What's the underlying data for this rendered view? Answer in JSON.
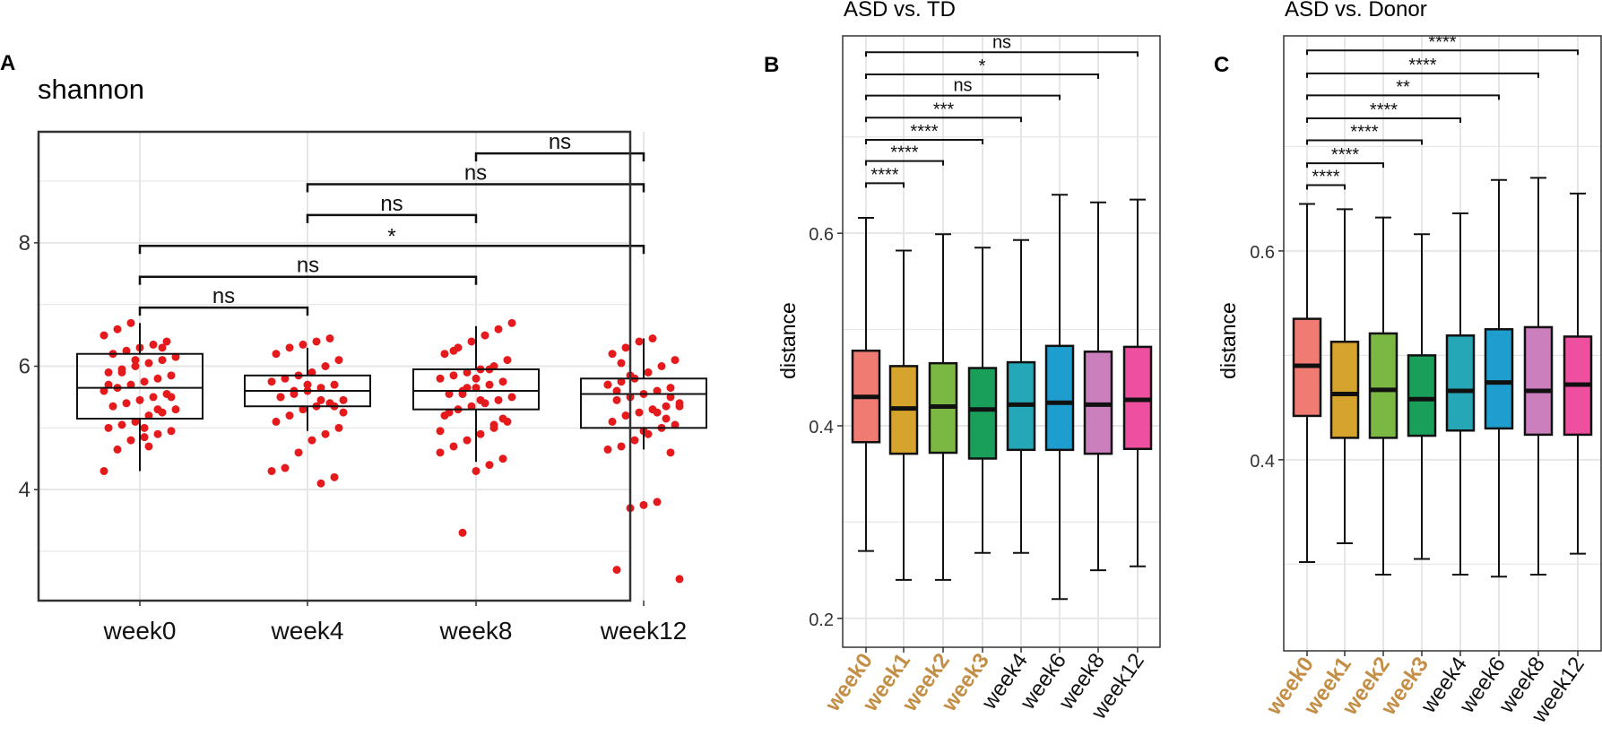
{
  "colors": {
    "grid": "#e6e6e6",
    "frame": "#333333",
    "points": "#e41a1c",
    "bold_tick": "#c38e45"
  },
  "chart_data": [
    {
      "panel_label": "A",
      "type": "box",
      "title": "shannon",
      "xlabel": "",
      "ylabel": "",
      "ylim": [
        2.2,
        9.8
      ],
      "yticks": [
        4,
        6,
        8
      ],
      "grid": true,
      "categories": [
        "week0",
        "week4",
        "week8",
        "week12"
      ],
      "boxes": [
        {
          "q1": 5.15,
          "median": 5.65,
          "q3": 6.2,
          "whisker_low": 4.3,
          "whisker_high": 6.7
        },
        {
          "q1": 5.35,
          "median": 5.6,
          "q3": 5.85,
          "whisker_low": 4.95,
          "whisker_high": 6.3
        },
        {
          "q1": 5.3,
          "median": 5.6,
          "q3": 5.95,
          "whisker_low": 4.45,
          "whisker_high": 6.65
        },
        {
          "q1": 5.0,
          "median": 5.55,
          "q3": 5.8,
          "whisker_low": 4.65,
          "whisker_high": 6.45
        }
      ],
      "points": [
        [
          4.3,
          4.65,
          4.8,
          4.85,
          4.9,
          4.95,
          5.0,
          5.05,
          5.1,
          5.2,
          5.25,
          5.3,
          5.35,
          5.4,
          5.45,
          5.5,
          5.55,
          5.6,
          5.65,
          5.7,
          5.75,
          5.8,
          5.85,
          5.9,
          5.95,
          6.0,
          6.05,
          6.1,
          6.15,
          6.2,
          6.25,
          6.3,
          6.35,
          6.4,
          6.5,
          6.6,
          6.7,
          5.0,
          5.3,
          5.5,
          5.7,
          5.9,
          6.1,
          4.7,
          6.3
        ],
        [
          4.1,
          4.2,
          4.3,
          4.35,
          4.6,
          4.8,
          4.9,
          5.0,
          5.1,
          5.2,
          5.3,
          5.35,
          5.4,
          5.45,
          5.5,
          5.55,
          5.6,
          5.65,
          5.7,
          5.75,
          5.8,
          5.85,
          5.9,
          6.0,
          6.1,
          6.2,
          6.3,
          6.35,
          6.4,
          6.45,
          5.25,
          5.5,
          5.6,
          5.7,
          5.45,
          5.35
        ],
        [
          3.3,
          4.3,
          4.4,
          4.5,
          4.6,
          4.7,
          4.8,
          4.9,
          5.0,
          5.1,
          5.2,
          5.3,
          5.35,
          5.4,
          5.45,
          5.5,
          5.55,
          5.6,
          5.65,
          5.7,
          5.75,
          5.8,
          5.85,
          5.9,
          5.95,
          6.0,
          6.1,
          6.2,
          6.3,
          6.4,
          6.5,
          6.6,
          6.7,
          5.25,
          5.55,
          5.8,
          5.95,
          5.15,
          4.95,
          6.25,
          5.65,
          5.45,
          5.05
        ],
        [
          2.55,
          2.7,
          3.7,
          3.75,
          3.8,
          4.6,
          4.65,
          4.7,
          4.8,
          4.9,
          5.0,
          5.05,
          5.1,
          5.2,
          5.25,
          5.3,
          5.35,
          5.4,
          5.45,
          5.5,
          5.55,
          5.6,
          5.65,
          5.7,
          5.75,
          5.8,
          5.9,
          6.0,
          6.1,
          6.2,
          6.3,
          6.4,
          6.45,
          5.15,
          5.35,
          5.6,
          5.85,
          4.95,
          5.25,
          5.5,
          5.7,
          6.05
        ]
      ],
      "comparisons": [
        {
          "from": 2,
          "to": 3,
          "y": 9.45,
          "label": "ns"
        },
        {
          "from": 1,
          "to": 3,
          "y": 8.95,
          "label": "ns"
        },
        {
          "from": 1,
          "to": 2,
          "y": 8.45,
          "label": "ns"
        },
        {
          "from": 0,
          "to": 3,
          "y": 7.95,
          "label": "*"
        },
        {
          "from": 0,
          "to": 2,
          "y": 7.45,
          "label": "ns"
        },
        {
          "from": 0,
          "to": 1,
          "y": 6.95,
          "label": "ns"
        }
      ]
    },
    {
      "panel_label": "B",
      "type": "box",
      "title": "ASD vs.  TD",
      "xlabel": "",
      "ylabel": "distance",
      "ylim": [
        0.17,
        0.805
      ],
      "yticks": [
        0.2,
        0.4,
        0.6
      ],
      "minor_yticks": [
        0.3,
        0.5,
        0.7
      ],
      "grid": true,
      "categories": [
        "week0",
        "week1",
        "week2",
        "week3",
        "week4",
        "week6",
        "week8",
        "week12"
      ],
      "bold_categories": [
        "week0",
        "week1",
        "week2",
        "week3"
      ],
      "fill_colors": [
        "#f07b72",
        "#d6a42c",
        "#7bb843",
        "#1a9f5b",
        "#26a7b8",
        "#1e9ecf",
        "#cc7fbd",
        "#ee4f9e"
      ],
      "boxes": [
        {
          "q1": 0.383,
          "median": 0.43,
          "q3": 0.478,
          "whisker_low": 0.27,
          "whisker_high": 0.616
        },
        {
          "q1": 0.371,
          "median": 0.418,
          "q3": 0.462,
          "whisker_low": 0.24,
          "whisker_high": 0.582
        },
        {
          "q1": 0.372,
          "median": 0.42,
          "q3": 0.465,
          "whisker_low": 0.24,
          "whisker_high": 0.599
        },
        {
          "q1": 0.366,
          "median": 0.417,
          "q3": 0.46,
          "whisker_low": 0.268,
          "whisker_high": 0.585
        },
        {
          "q1": 0.375,
          "median": 0.422,
          "q3": 0.466,
          "whisker_low": 0.268,
          "whisker_high": 0.593
        },
        {
          "q1": 0.375,
          "median": 0.424,
          "q3": 0.483,
          "whisker_low": 0.22,
          "whisker_high": 0.64
        },
        {
          "q1": 0.371,
          "median": 0.422,
          "q3": 0.477,
          "whisker_low": 0.25,
          "whisker_high": 0.632
        },
        {
          "q1": 0.376,
          "median": 0.427,
          "q3": 0.482,
          "whisker_low": 0.254,
          "whisker_high": 0.635
        }
      ],
      "comparisons": [
        {
          "from": 0,
          "to": 7,
          "y": 0.788,
          "label": "ns"
        },
        {
          "from": 0,
          "to": 6,
          "y": 0.765,
          "label": "*"
        },
        {
          "from": 0,
          "to": 5,
          "y": 0.743,
          "label": "ns"
        },
        {
          "from": 0,
          "to": 4,
          "y": 0.72,
          "label": "***"
        },
        {
          "from": 0,
          "to": 3,
          "y": 0.697,
          "label": "****"
        },
        {
          "from": 0,
          "to": 2,
          "y": 0.675,
          "label": "****"
        },
        {
          "from": 0,
          "to": 1,
          "y": 0.652,
          "label": "****"
        }
      ]
    },
    {
      "panel_label": "C",
      "type": "box",
      "title": "ASD vs.  Donor",
      "xlabel": "",
      "ylabel": "distance",
      "ylim": [
        0.217,
        0.806
      ],
      "yticks": [
        0.4,
        0.6
      ],
      "minor_yticks": [
        0.3,
        0.5,
        0.7
      ],
      "grid": true,
      "categories": [
        "week0",
        "week1",
        "week2",
        "week3",
        "week4",
        "week6",
        "week8",
        "week12"
      ],
      "bold_categories": [
        "week0",
        "week1",
        "week2",
        "week3"
      ],
      "fill_colors": [
        "#f07b72",
        "#d6a42c",
        "#7bb843",
        "#1a9f5b",
        "#26a7b8",
        "#1e9ecf",
        "#cc7fbd",
        "#ee4f9e"
      ],
      "boxes": [
        {
          "q1": 0.442,
          "median": 0.49,
          "q3": 0.535,
          "whisker_low": 0.302,
          "whisker_high": 0.645
        },
        {
          "q1": 0.421,
          "median": 0.463,
          "q3": 0.513,
          "whisker_low": 0.32,
          "whisker_high": 0.64
        },
        {
          "q1": 0.421,
          "median": 0.467,
          "q3": 0.521,
          "whisker_low": 0.29,
          "whisker_high": 0.632
        },
        {
          "q1": 0.423,
          "median": 0.458,
          "q3": 0.5,
          "whisker_low": 0.305,
          "whisker_high": 0.616
        },
        {
          "q1": 0.428,
          "median": 0.466,
          "q3": 0.519,
          "whisker_low": 0.29,
          "whisker_high": 0.636
        },
        {
          "q1": 0.43,
          "median": 0.474,
          "q3": 0.525,
          "whisker_low": 0.288,
          "whisker_high": 0.668
        },
        {
          "q1": 0.424,
          "median": 0.466,
          "q3": 0.527,
          "whisker_low": 0.29,
          "whisker_high": 0.67
        },
        {
          "q1": 0.424,
          "median": 0.472,
          "q3": 0.518,
          "whisker_low": 0.31,
          "whisker_high": 0.655
        }
      ],
      "comparisons": [
        {
          "from": 0,
          "to": 7,
          "y": 0.792,
          "label": "****"
        },
        {
          "from": 0,
          "to": 6,
          "y": 0.77,
          "label": "****"
        },
        {
          "from": 0,
          "to": 5,
          "y": 0.749,
          "label": "**"
        },
        {
          "from": 0,
          "to": 4,
          "y": 0.727,
          "label": "****"
        },
        {
          "from": 0,
          "to": 3,
          "y": 0.706,
          "label": "****"
        },
        {
          "from": 0,
          "to": 2,
          "y": 0.684,
          "label": "****"
        },
        {
          "from": 0,
          "to": 1,
          "y": 0.663,
          "label": "****"
        }
      ]
    }
  ]
}
